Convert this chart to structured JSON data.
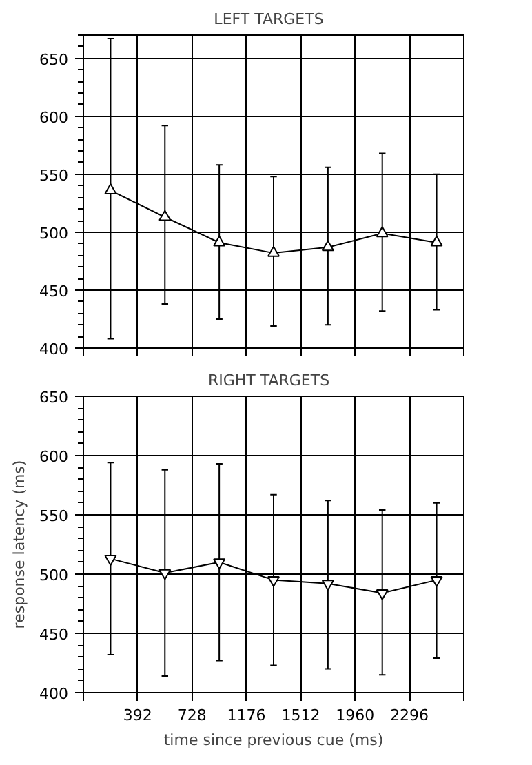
{
  "chart_data": [
    {
      "type": "line",
      "title": "LEFT   TARGETS",
      "categories": [
        null,
        null,
        null,
        null,
        null,
        null,
        null
      ],
      "ylim": [
        400,
        670
      ],
      "yticks": [
        400,
        450,
        500,
        550,
        600,
        650
      ],
      "tick_labels": "y",
      "grid": true,
      "marker": "triangle",
      "series": [
        {
          "color": "#000000",
          "values": [
            536,
            513,
            491,
            482,
            487,
            499,
            491
          ],
          "errors": [
            [
              408,
              667
            ],
            [
              438,
              592
            ],
            [
              425,
              558
            ],
            [
              419,
              548
            ],
            [
              420,
              556
            ],
            [
              432,
              568
            ],
            [
              433,
              550
            ]
          ]
        }
      ]
    },
    {
      "type": "line",
      "title": "RIGHT   TARGETS",
      "xlabel": "time since previous cue (ms)",
      "ylabel": "response latency (ms)",
      "categories": [
        null,
        null,
        null,
        null,
        null,
        null,
        null
      ],
      "annotations": [
        "392",
        "728",
        "1176",
        "1512",
        "1960",
        "2296"
      ],
      "ylim": [
        400,
        650
      ],
      "yticks": [
        400,
        450,
        500,
        550,
        600,
        650
      ],
      "tick_labels": "y",
      "grid": true,
      "marker": "triangle_down",
      "series": [
        {
          "color": "#000000",
          "values": [
            513,
            501,
            510,
            495,
            492,
            484,
            495
          ],
          "errors": [
            [
              432,
              594
            ],
            [
              414,
              588
            ],
            [
              427,
              593
            ],
            [
              423,
              567
            ],
            [
              420,
              562
            ],
            [
              415,
              554
            ],
            [
              429,
              560
            ]
          ]
        }
      ]
    }
  ]
}
